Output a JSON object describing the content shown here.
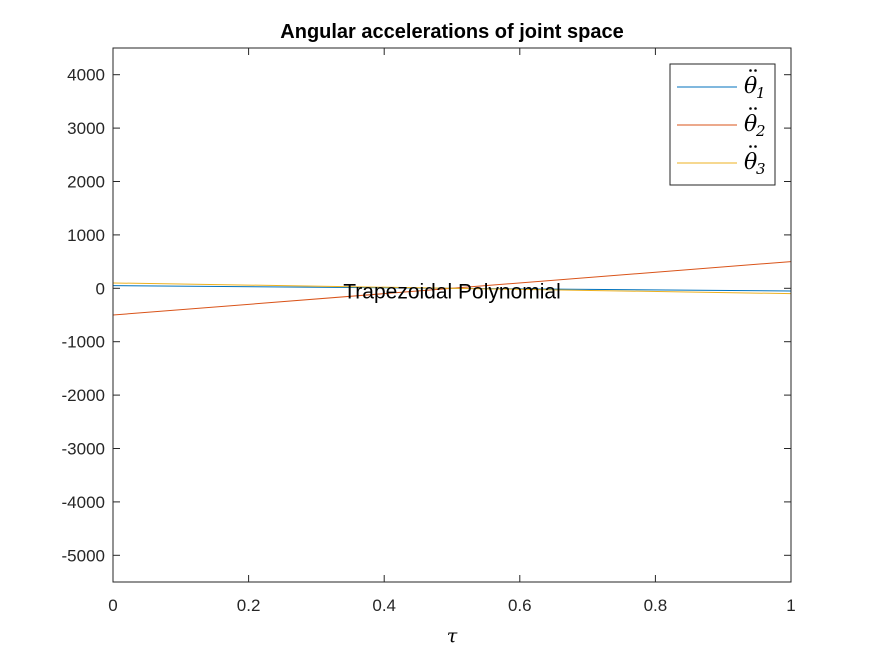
{
  "chart_data": {
    "type": "line",
    "title": "Angular accelerations of joint space",
    "xlabel": "τ",
    "ylabel": "",
    "xlim": [
      0,
      1
    ],
    "ylim": [
      -5500,
      4500
    ],
    "xticks": [
      0,
      0.2,
      0.4,
      0.6,
      0.8,
      1
    ],
    "xtick_labels": [
      "0",
      "0.2",
      "0.4",
      "0.6",
      "0.8",
      "1"
    ],
    "yticks": [
      4000,
      3000,
      2000,
      1000,
      0,
      -1000,
      -2000,
      -3000,
      -4000,
      -5000
    ],
    "ytick_labels": [
      "4000",
      "3000",
      "2000",
      "1000",
      "0",
      "-1000",
      "-2000",
      "-3000",
      "-4000",
      "-5000"
    ],
    "grid": false,
    "legend_position": "top-right",
    "annotation": {
      "text": "Trapezoidal Polynomial",
      "x": 0.5,
      "y": 0
    },
    "series": [
      {
        "name": "θ̈1",
        "base": "θ",
        "sub": "1",
        "color": "#0072bd",
        "x": [
          0,
          1
        ],
        "y": [
          50,
          -50
        ]
      },
      {
        "name": "θ̈2",
        "base": "θ",
        "sub": "2",
        "color": "#d95319",
        "x": [
          0,
          1
        ],
        "y": [
          -500,
          500
        ]
      },
      {
        "name": "θ̈3",
        "base": "θ",
        "sub": "3",
        "color": "#edb120",
        "x": [
          0,
          1
        ],
        "y": [
          100,
          -100
        ]
      }
    ]
  }
}
